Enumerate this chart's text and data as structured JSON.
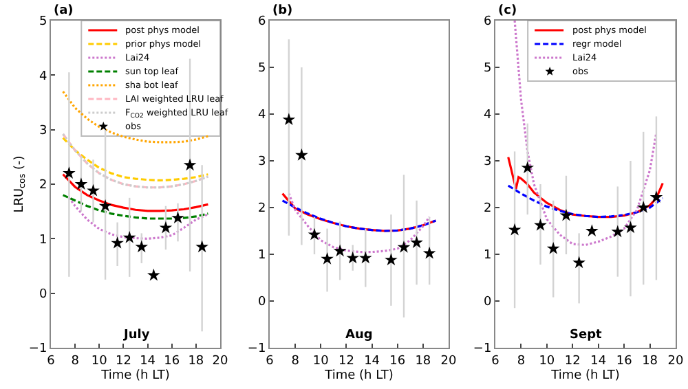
{
  "chart_data": [
    {
      "type": "line",
      "ylabel": "LRU$_{cos}$ (-)",
      "xlabel": "Time (h LT)",
      "annotations": [
        "(a)",
        "July"
      ],
      "xlim": [
        6,
        20
      ],
      "xticks": [
        6,
        8,
        10,
        12,
        14,
        16,
        18,
        20
      ],
      "ylim": [
        -1,
        5
      ],
      "yticks": [
        -1,
        0,
        1,
        2,
        3,
        4,
        5
      ],
      "legend": "top right",
      "series": [
        {
          "name": "post phys model",
          "color": "#ff0000",
          "line_style": "solid",
          "x": [
            7,
            8,
            9,
            10,
            11,
            12,
            13,
            14,
            15,
            16,
            17,
            18,
            19
          ],
          "values": [
            2.18,
            1.95,
            1.8,
            1.7,
            1.62,
            1.57,
            1.53,
            1.51,
            1.51,
            1.52,
            1.54,
            1.58,
            1.63
          ]
        },
        {
          "name": "prior phys model",
          "color": "#ffcc00",
          "line_style": "dashed",
          "x": [
            7,
            8,
            9,
            10,
            11,
            12,
            13,
            14,
            15,
            16,
            17,
            18,
            19
          ],
          "values": [
            2.85,
            2.62,
            2.45,
            2.3,
            2.2,
            2.13,
            2.1,
            2.08,
            2.07,
            2.08,
            2.1,
            2.13,
            2.18
          ]
        },
        {
          "name": "Lai24",
          "color": "#cc77cc",
          "line_style": "dotted",
          "x": [
            7.5,
            8,
            9,
            10,
            11,
            12,
            13,
            14,
            15,
            16,
            17,
            18,
            19
          ],
          "values": [
            1.75,
            1.6,
            1.35,
            1.18,
            1.08,
            1.03,
            1.01,
            1.0,
            1.02,
            1.06,
            1.2,
            1.35,
            1.45
          ]
        },
        {
          "name": "sun top leaf",
          "color": "#008000",
          "line_style": "dashed",
          "x": [
            7,
            8,
            9,
            10,
            11,
            12,
            13,
            14,
            15,
            16,
            17,
            18,
            19
          ],
          "values": [
            1.8,
            1.7,
            1.6,
            1.52,
            1.46,
            1.42,
            1.39,
            1.37,
            1.37,
            1.37,
            1.38,
            1.41,
            1.46
          ]
        },
        {
          "name": "sha bot leaf",
          "color": "#ffa500",
          "line_style": "dotted",
          "x": [
            7,
            8,
            9,
            10,
            11,
            12,
            13,
            14,
            15,
            16,
            17,
            18,
            19
          ],
          "values": [
            3.7,
            3.4,
            3.2,
            3.05,
            2.95,
            2.87,
            2.82,
            2.78,
            2.77,
            2.77,
            2.78,
            2.82,
            2.88
          ]
        },
        {
          "name": "LAI weighted LRU leaf",
          "color": "#ffb6c1",
          "line_style": "dashed",
          "x": [
            7,
            8,
            9,
            10,
            11,
            12,
            13,
            14,
            15,
            16,
            17,
            18,
            19
          ],
          "values": [
            2.92,
            2.62,
            2.38,
            2.2,
            2.08,
            2.0,
            1.96,
            1.94,
            1.94,
            1.96,
            2.0,
            2.06,
            2.14
          ]
        },
        {
          "name": "F$_{CO2}$ weighted LRU leaf",
          "color": "#cccccc",
          "line_style": "dotted",
          "x": [
            7,
            8,
            9,
            10,
            11,
            12,
            13,
            14,
            15,
            16,
            17,
            18,
            19
          ],
          "values": [
            2.92,
            2.62,
            2.38,
            2.2,
            2.08,
            2.0,
            1.96,
            1.94,
            1.94,
            1.96,
            2.0,
            2.06,
            2.14
          ]
        },
        {
          "name": "obs",
          "type": "scatter",
          "marker": "star",
          "color": "#000000",
          "x": [
            7.5,
            8.5,
            9.5,
            10.5,
            11.5,
            12.5,
            13.5,
            14.5,
            15.5,
            16.5,
            17.5,
            18.5
          ],
          "values": [
            2.2,
            2.0,
            1.88,
            1.6,
            0.92,
            1.02,
            0.85,
            0.33,
            1.2,
            1.38,
            2.35,
            0.85
          ],
          "errors": [
            [
              0.3,
              4.05
            ],
            [
              1.5,
              2.5
            ],
            [
              1.3,
              2.45
            ],
            [
              0.25,
              3.0
            ],
            [
              0.5,
              1.3
            ],
            [
              0.3,
              1.75
            ],
            [
              0.55,
              1.1
            ],
            null,
            [
              0.8,
              1.6
            ],
            [
              0.95,
              1.65
            ],
            [
              0.4,
              4.3
            ],
            [
              -0.7,
              2.35
            ]
          ]
        }
      ]
    },
    {
      "type": "line",
      "xlabel": "Time (h LT)",
      "annotations": [
        "(b)",
        "Aug"
      ],
      "xlim": [
        6,
        20
      ],
      "xticks": [
        6,
        8,
        10,
        12,
        14,
        16,
        18,
        20
      ],
      "ylim": [
        -1,
        6
      ],
      "yticks": [
        -1,
        0,
        1,
        2,
        3,
        4,
        5,
        6
      ],
      "series": [
        {
          "color": "#ff0000",
          "line_style": "solid",
          "x": [
            7,
            8,
            9,
            10,
            11,
            12,
            13,
            14,
            15,
            16,
            17,
            18,
            19
          ],
          "values": [
            2.3,
            1.98,
            1.85,
            1.75,
            1.67,
            1.6,
            1.55,
            1.52,
            1.5,
            1.51,
            1.55,
            1.62,
            1.72
          ]
        },
        {
          "color": "#0000ff",
          "line_style": "dashed",
          "x": [
            7,
            8,
            9,
            10,
            11,
            12,
            13,
            14,
            15,
            16,
            17,
            18,
            19
          ],
          "values": [
            2.15,
            2.0,
            1.87,
            1.76,
            1.67,
            1.6,
            1.55,
            1.52,
            1.5,
            1.51,
            1.55,
            1.62,
            1.72
          ]
        },
        {
          "color": "#cc77cc",
          "line_style": "dotted",
          "x": [
            7.5,
            8,
            9,
            10,
            11,
            12,
            13,
            14,
            15,
            16,
            17,
            18,
            18.5
          ],
          "values": [
            2.3,
            1.95,
            1.6,
            1.3,
            1.15,
            1.08,
            1.05,
            1.05,
            1.07,
            1.12,
            1.3,
            1.6,
            1.8
          ]
        },
        {
          "type": "scatter",
          "marker": "star",
          "color": "#000000",
          "x": [
            7.5,
            8.5,
            9.5,
            10.5,
            11.5,
            12.5,
            13.5,
            15.5,
            16.5,
            17.5,
            18.5
          ],
          "values": [
            3.88,
            3.12,
            1.42,
            0.9,
            1.07,
            0.92,
            0.92,
            0.88,
            1.15,
            1.25,
            1.02
          ],
          "errors": [
            [
              1.4,
              5.6
            ],
            [
              1.2,
              5.0
            ],
            [
              1.0,
              1.8
            ],
            [
              0.2,
              1.55
            ],
            [
              0.45,
              1.7
            ],
            [
              0.65,
              1.2
            ],
            [
              0.3,
              1.55
            ],
            [
              -0.1,
              1.85
            ],
            [
              -0.35,
              2.7
            ],
            [
              0.35,
              2.15
            ],
            [
              0.35,
              1.8
            ]
          ]
        }
      ]
    },
    {
      "type": "line",
      "xlabel": "Time (h LT)",
      "annotations": [
        "(c)",
        "Sept"
      ],
      "xlim": [
        6,
        20
      ],
      "xticks": [
        6,
        8,
        10,
        12,
        14,
        16,
        18,
        20
      ],
      "ylim": [
        -1,
        6
      ],
      "yticks": [
        -1,
        0,
        1,
        2,
        3,
        4,
        5,
        6
      ],
      "legend": "top right",
      "series": [
        {
          "name": "post phys model",
          "color": "#ff0000",
          "line_style": "solid",
          "x": [
            7,
            7.6,
            7.8,
            8,
            8.5,
            9,
            10,
            11,
            12,
            13,
            14,
            15,
            16,
            17,
            18,
            18.5,
            19
          ],
          "values": [
            3.08,
            2.4,
            2.65,
            2.62,
            2.5,
            2.32,
            2.1,
            1.95,
            1.85,
            1.82,
            1.8,
            1.8,
            1.83,
            1.9,
            2.05,
            2.2,
            2.52
          ]
        },
        {
          "name": "regr model",
          "color": "#0000ff",
          "line_style": "dashed",
          "x": [
            7,
            8,
            9,
            10,
            11,
            12,
            13,
            14,
            15,
            16,
            17,
            18,
            19
          ],
          "values": [
            2.47,
            2.3,
            2.15,
            2.02,
            1.93,
            1.86,
            1.82,
            1.8,
            1.81,
            1.84,
            1.9,
            2.0,
            2.2
          ]
        },
        {
          "name": "Lai24",
          "color": "#cc77cc",
          "line_style": "dotted",
          "x": [
            7.5,
            8,
            8.5,
            9,
            10,
            11,
            12,
            13,
            14,
            15,
            16,
            17,
            18,
            18.5
          ],
          "values": [
            6.0,
            4.3,
            3.2,
            2.5,
            1.75,
            1.42,
            1.22,
            1.2,
            1.27,
            1.38,
            1.55,
            1.95,
            2.8,
            3.6
          ]
        },
        {
          "name": "obs",
          "type": "scatter",
          "marker": "star",
          "color": "#000000",
          "x": [
            7.5,
            8.5,
            9.5,
            10.5,
            11.5,
            12.5,
            13.5,
            15.5,
            16.5,
            17.5,
            18.5
          ],
          "values": [
            1.52,
            2.85,
            1.62,
            1.12,
            1.83,
            0.82,
            1.5,
            1.48,
            1.57,
            2.0,
            2.22
          ],
          "errors": [
            [
              -0.15,
              3.2
            ],
            [
              1.85,
              3.8
            ],
            [
              0.78,
              2.5
            ],
            [
              0.08,
              2.15
            ],
            [
              1.0,
              2.68
            ],
            [
              -0.05,
              1.45
            ],
            null,
            [
              0.52,
              2.45
            ],
            [
              0.1,
              3.0
            ],
            [
              0.35,
              3.62
            ],
            [
              0.45,
              3.95
            ]
          ]
        }
      ]
    }
  ]
}
